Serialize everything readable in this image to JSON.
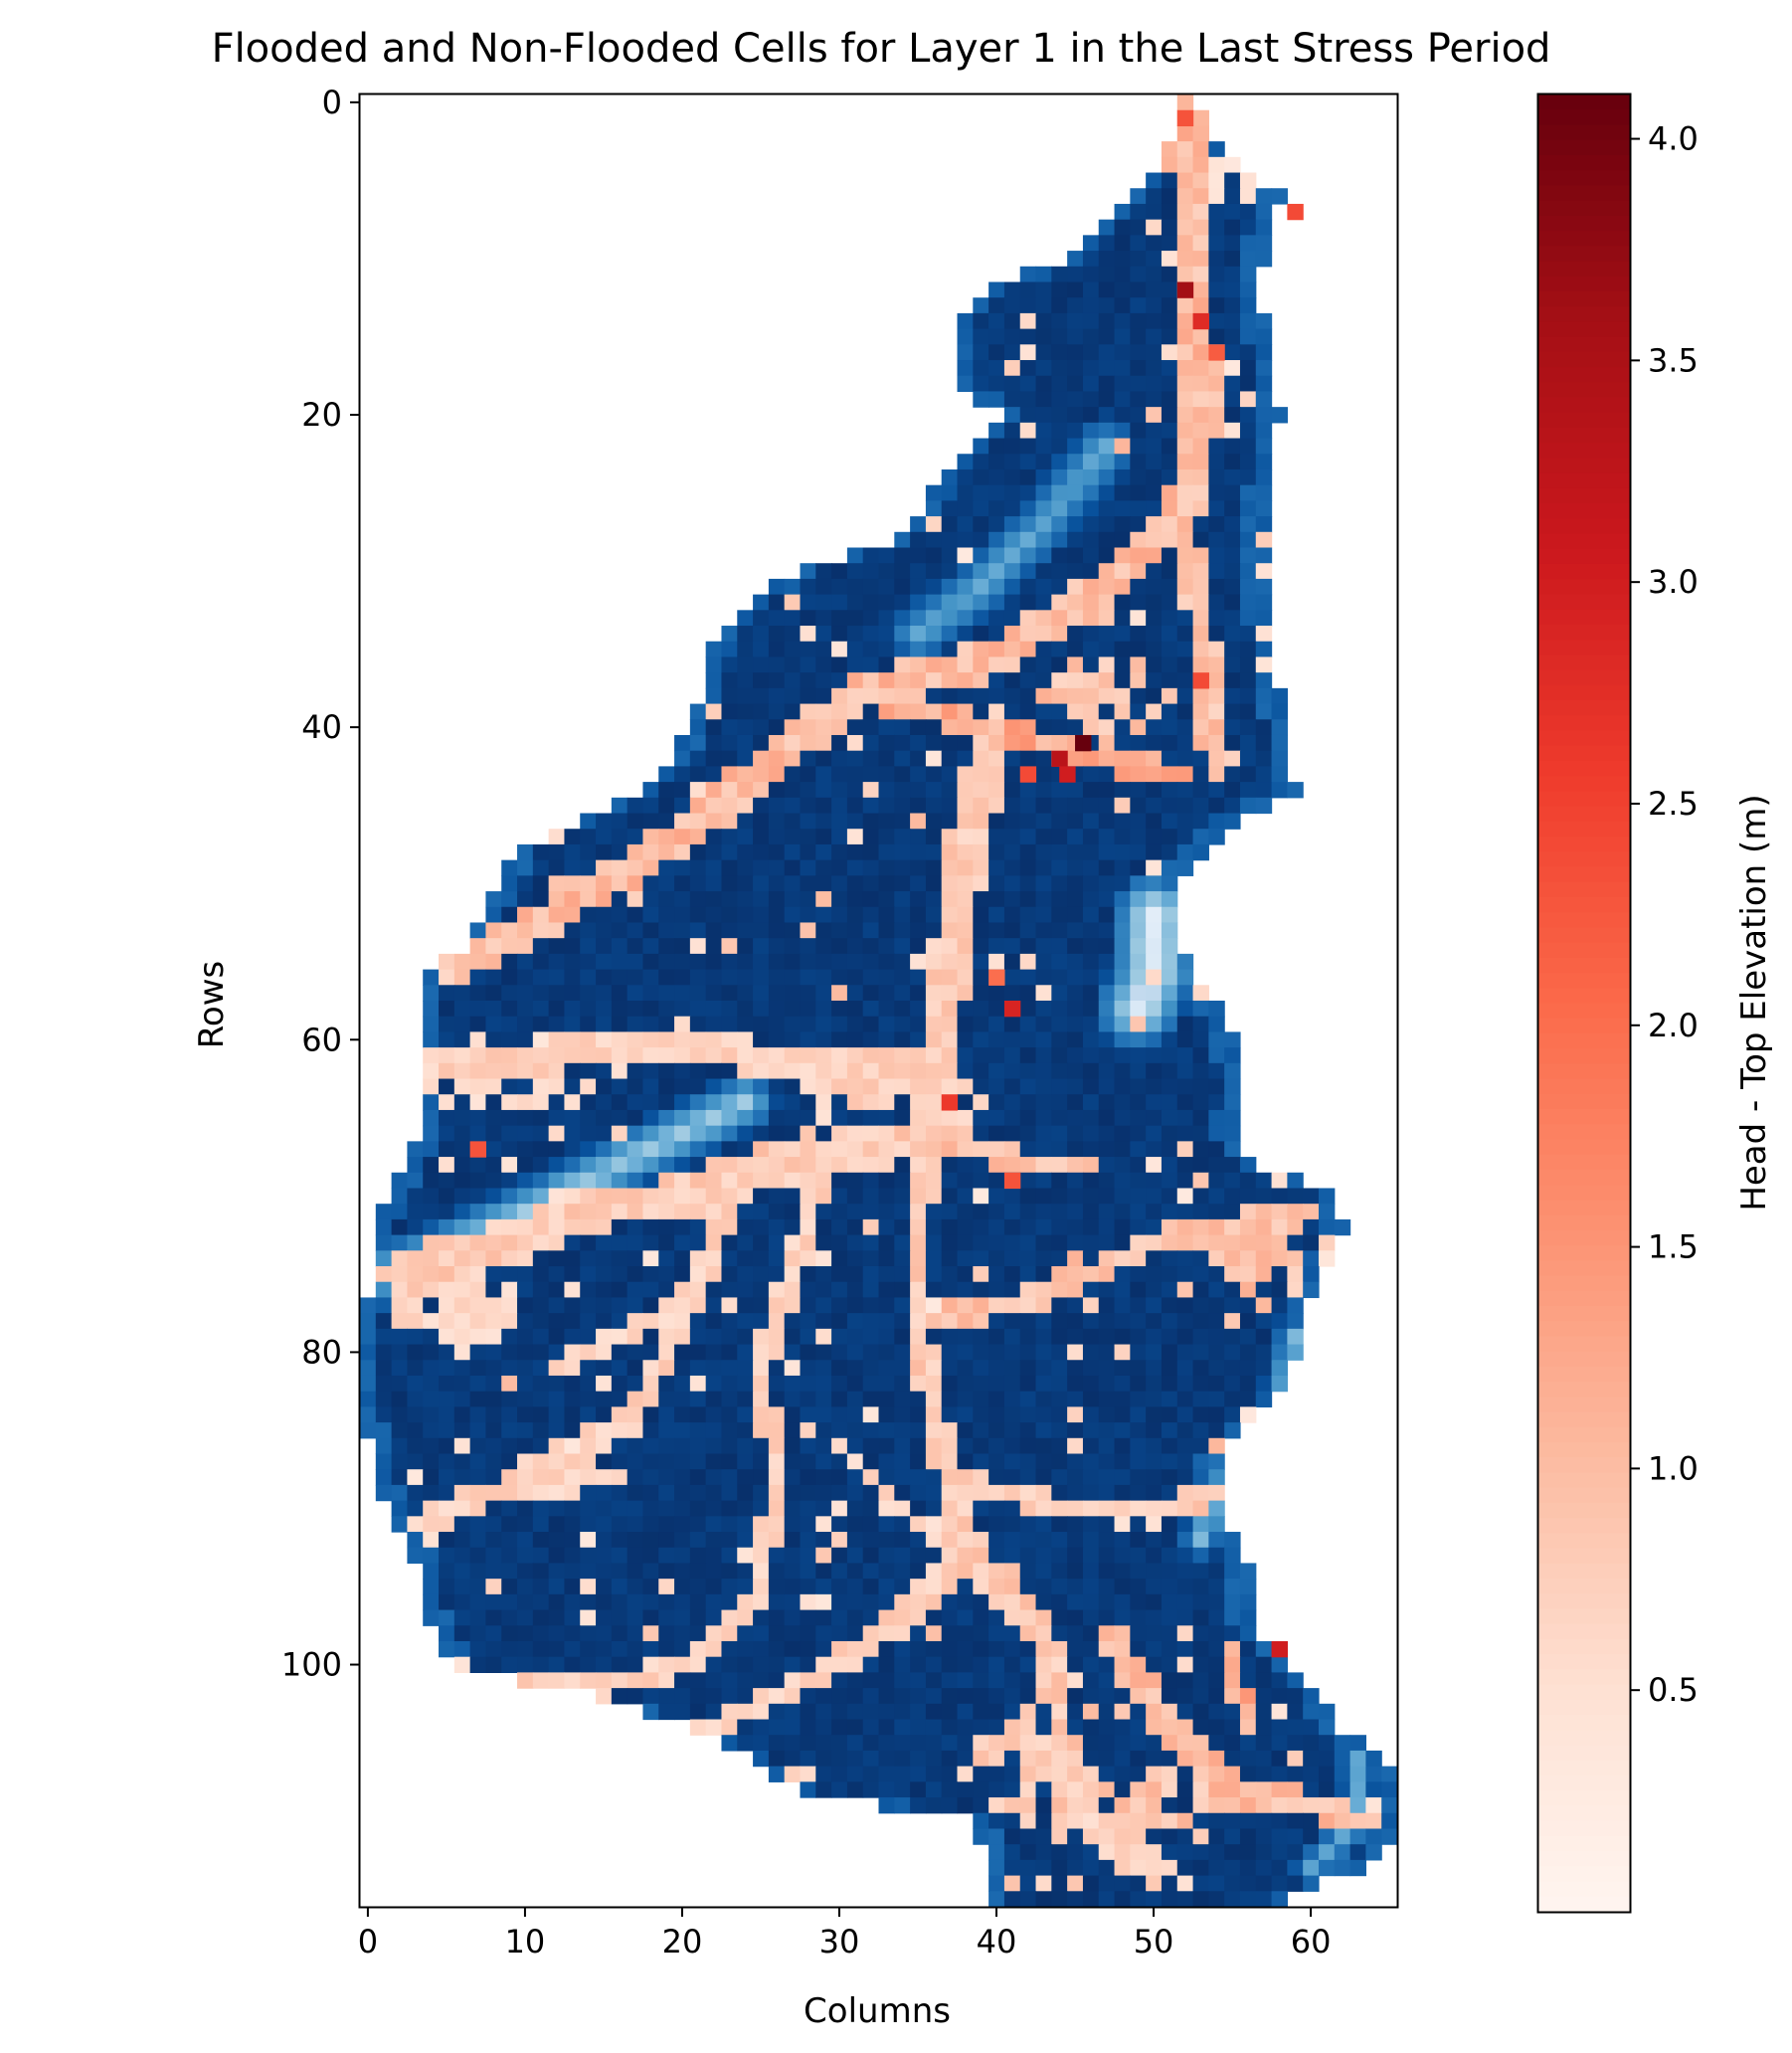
{
  "chart_data": {
    "type": "heatmap",
    "title": "Flooded and Non-Flooded Cells for Layer 1 in the Last Stress Period",
    "xlabel": "Columns",
    "ylabel": "Rows",
    "xlim": [
      -0.5,
      65.5
    ],
    "ylim": [
      115.5,
      -0.5
    ],
    "xticks": [
      0,
      10,
      20,
      30,
      40,
      50,
      60
    ],
    "yticks": [
      0,
      20,
      40,
      60,
      80,
      100
    ],
    "colorbar": {
      "label": "Head - Top Elevation (m)",
      "colormap": "Reds",
      "range": [
        0.0,
        4.1
      ],
      "ticks": [
        0.5,
        1.0,
        1.5,
        2.0,
        2.5,
        3.0,
        3.5,
        4.0
      ]
    },
    "flooded_colormap": "Reds",
    "non_flooded_colormap": "Blues",
    "colors": {
      "non_flooded_deep": "#08306b",
      "non_flooded_mid": "#2171b5",
      "non_flooded_light": "#9ecae1",
      "flooded_light": "#fcbba1",
      "flooded_mid": "#fb6a4a",
      "flooded_high": "#a50f15",
      "flooded_max": "#67000d"
    },
    "domain_rows": [
      [
        0,
        51.5,
        52.5
      ],
      [
        2,
        51.5,
        53.5
      ],
      [
        4,
        50.5,
        55
      ],
      [
        6,
        48.5,
        58
      ],
      [
        8,
        46.5,
        57.5
      ],
      [
        10,
        44.5,
        57
      ],
      [
        12,
        39.5,
        56.5
      ],
      [
        14,
        37.5,
        57
      ],
      [
        16,
        37.5,
        57.5
      ],
      [
        18,
        37.5,
        57.5
      ],
      [
        20,
        40.5,
        58
      ],
      [
        22,
        38.5,
        57.5
      ],
      [
        24,
        36.5,
        57.5
      ],
      [
        26,
        35.5,
        57
      ],
      [
        28,
        33.5,
        57
      ],
      [
        30,
        27.5,
        57
      ],
      [
        32,
        24.5,
        57
      ],
      [
        34,
        22.5,
        57.5
      ],
      [
        36,
        21.5,
        57.5
      ],
      [
        38,
        21.5,
        58
      ],
      [
        40,
        20.5,
        58.5
      ],
      [
        42,
        19.5,
        58.5
      ],
      [
        44,
        17.5,
        59
      ],
      [
        46,
        13.5,
        55
      ],
      [
        48,
        9.5,
        53
      ],
      [
        50,
        8.5,
        51.5
      ],
      [
        52,
        7.5,
        51
      ],
      [
        54,
        6.5,
        51.5
      ],
      [
        56,
        3.5,
        52.5
      ],
      [
        58,
        3.5,
        54
      ],
      [
        60,
        3.5,
        55
      ],
      [
        62,
        3.5,
        55.5
      ],
      [
        64,
        3.5,
        55.5
      ],
      [
        66,
        3.5,
        55
      ],
      [
        68,
        2.5,
        56.5
      ],
      [
        70,
        1.5,
        61.5
      ],
      [
        72,
        0.5,
        62
      ],
      [
        74,
        0.5,
        61
      ],
      [
        76,
        0.5,
        60
      ],
      [
        78,
        -0.5,
        59.5
      ],
      [
        80,
        -0.5,
        59
      ],
      [
        82,
        -0.5,
        58.5
      ],
      [
        84,
        -0.5,
        56.5
      ],
      [
        86,
        0.5,
        54.5
      ],
      [
        88,
        0.5,
        54
      ],
      [
        90,
        1.5,
        54
      ],
      [
        92,
        2.5,
        55.5
      ],
      [
        94,
        3.5,
        56
      ],
      [
        96,
        3.5,
        56
      ],
      [
        98,
        4.5,
        56.5
      ],
      [
        100,
        5.5,
        58.5
      ],
      [
        102,
        14.5,
        60.5
      ],
      [
        104,
        20.5,
        61.5
      ],
      [
        106,
        24.5,
        64.5
      ],
      [
        108,
        27.5,
        65.5
      ],
      [
        110,
        38.5,
        65.5
      ],
      [
        112,
        39.5,
        64.5
      ],
      [
        113,
        39.5,
        63
      ],
      [
        114,
        39.5,
        60.5
      ],
      [
        115,
        39.5,
        58.5
      ]
    ],
    "channels": [
      {
        "points": [
          [
            52,
            1
          ],
          [
            52.5,
            10
          ],
          [
            53,
            20
          ],
          [
            52,
            26
          ],
          [
            47,
            31
          ],
          [
            40,
            35.5
          ],
          [
            31,
            38
          ],
          [
            26,
            42
          ],
          [
            20,
            47
          ],
          [
            15,
            50
          ],
          [
            10,
            53
          ],
          [
            6,
            55
          ]
        ],
        "width": 2.4,
        "value": 1.0
      },
      {
        "points": [
          [
            52,
            28
          ],
          [
            53,
            33
          ],
          [
            53.5,
            38
          ],
          [
            54,
            43
          ]
        ],
        "width": 1.6,
        "value": 0.9
      },
      {
        "points": [
          [
            31,
            38
          ],
          [
            40,
            40
          ],
          [
            46,
            42
          ],
          [
            52,
            43
          ]
        ],
        "width": 1.4,
        "value": 1.2
      },
      {
        "points": [
          [
            40,
            40
          ],
          [
            38,
            48
          ],
          [
            37,
            56
          ],
          [
            36,
            62
          ],
          [
            36,
            66
          ],
          [
            32,
            67
          ],
          [
            26,
            68
          ],
          [
            20,
            70
          ],
          [
            14,
            71
          ],
          [
            9,
            73
          ],
          [
            5,
            74
          ],
          [
            2,
            75
          ]
        ],
        "width": 2.6,
        "value": 0.8
      },
      {
        "points": [
          [
            36,
            62
          ],
          [
            28,
            62
          ],
          [
            20,
            60
          ],
          [
            12,
            61
          ],
          [
            4,
            62
          ]
        ],
        "width": 2.2,
        "value": 0.7
      },
      {
        "points": [
          [
            36,
            66
          ],
          [
            42,
            68
          ],
          [
            46,
            68
          ]
        ],
        "width": 1.4,
        "value": 0.9
      },
      {
        "points": [
          [
            36,
            66
          ],
          [
            35,
            72
          ],
          [
            35,
            78
          ],
          [
            36,
            84
          ],
          [
            37,
            88
          ],
          [
            38,
            93
          ],
          [
            43,
            98
          ],
          [
            44,
            103
          ],
          [
            44,
            107
          ],
          [
            44,
            111
          ]
        ],
        "width": 1.6,
        "value": 0.8
      },
      {
        "points": [
          [
            23,
            68
          ],
          [
            22,
            73
          ],
          [
            20,
            78
          ],
          [
            17,
            84
          ],
          [
            12,
            88
          ],
          [
            8,
            89
          ],
          [
            3,
            91
          ]
        ],
        "width": 1.6,
        "value": 0.7
      },
      {
        "points": [
          [
            29,
            68
          ],
          [
            27,
            75
          ],
          [
            25,
            81
          ],
          [
            26,
            88
          ],
          [
            25,
            95
          ],
          [
            21,
            100
          ],
          [
            16,
            101
          ],
          [
            9,
            101
          ]
        ],
        "width": 1.4,
        "value": 0.7
      },
      {
        "points": [
          [
            35,
            78
          ],
          [
            41,
            77
          ],
          [
            46,
            75
          ],
          [
            50,
            73
          ],
          [
            55,
            72
          ],
          [
            60,
            71
          ]
        ],
        "width": 1.6,
        "value": 0.9
      },
      {
        "points": [
          [
            37,
            88
          ],
          [
            44,
            90
          ],
          [
            50,
            90
          ],
          [
            55,
            89
          ]
        ],
        "width": 1.4,
        "value": 0.8
      },
      {
        "points": [
          [
            38,
            93
          ],
          [
            33,
            98
          ],
          [
            28,
            101
          ],
          [
            22,
            104
          ],
          [
            18,
            107
          ]
        ],
        "width": 1.6,
        "value": 0.7
      },
      {
        "points": [
          [
            30,
            86
          ],
          [
            34,
            90
          ],
          [
            38,
            93
          ]
        ],
        "width": 1.1,
        "value": 0.6
      },
      {
        "points": [
          [
            47,
            98
          ],
          [
            51,
            104
          ],
          [
            55,
            108
          ],
          [
            60,
            109
          ],
          [
            63,
            110
          ]
        ],
        "width": 1.8,
        "value": 1.0
      },
      {
        "points": [
          [
            55,
            100
          ],
          [
            56,
            104
          ]
        ],
        "width": 1.2,
        "value": 1.2
      },
      {
        "points": [
          [
            12,
            81
          ],
          [
            16,
            79
          ],
          [
            20,
            77
          ]
        ],
        "width": 1.2,
        "value": 0.6
      },
      {
        "points": [
          [
            44,
            106
          ],
          [
            46,
            110
          ],
          [
            50,
            113
          ]
        ],
        "width": 2.4,
        "value": 0.7
      }
    ],
    "flooded_patches": [
      {
        "cx": 10,
        "cy": 62,
        "rx": 5,
        "ry": 2.5,
        "value": 0.5
      },
      {
        "cx": 6,
        "cy": 77,
        "rx": 4,
        "ry": 3,
        "value": 0.6
      },
      {
        "cx": 12,
        "cy": 88,
        "rx": 4,
        "ry": 2,
        "value": 0.6
      },
      {
        "cx": 42,
        "cy": 107,
        "rx": 4,
        "ry": 4,
        "value": 0.8
      },
      {
        "cx": 50,
        "cy": 109,
        "rx": 5,
        "ry": 3,
        "value": 0.9
      },
      {
        "cx": 57,
        "cy": 74,
        "rx": 3,
        "ry": 3,
        "value": 0.9
      },
      {
        "cx": 35,
        "cy": 64,
        "rx": 4,
        "ry": 3,
        "value": 0.7
      },
      {
        "cx": 47,
        "cy": 38,
        "rx": 4,
        "ry": 3,
        "value": 0.9
      },
      {
        "cx": 54,
        "cy": 5,
        "rx": 3,
        "ry": 1.5,
        "value": 0.4
      }
    ],
    "light_zones": [
      {
        "points": [
          [
            1,
            75
          ],
          [
            6,
            73
          ],
          [
            12,
            70
          ],
          [
            18,
            67
          ],
          [
            24,
            64
          ]
        ],
        "width": 2.2,
        "value": 0.6
      },
      {
        "points": [
          [
            47,
            22
          ],
          [
            43,
            27
          ],
          [
            39,
            31
          ],
          [
            35,
            34
          ]
        ],
        "width": 2.2,
        "value": 0.45
      },
      {
        "points": [
          [
            50,
            52
          ],
          [
            50,
            56
          ],
          [
            49,
            58
          ]
        ],
        "width": 3,
        "value": 0.85
      },
      {
        "points": [
          [
            59,
            79
          ],
          [
            58,
            84
          ],
          [
            55,
            87
          ],
          [
            53,
            92
          ]
        ],
        "width": 1.6,
        "value": 0.5
      },
      {
        "points": [
          [
            63,
            106
          ],
          [
            63,
            110
          ],
          [
            60,
            113
          ]
        ],
        "width": 1.4,
        "value": 0.45
      }
    ],
    "hotspots": [
      {
        "row": 41,
        "col": 45.5,
        "value": 4.1
      },
      {
        "row": 42,
        "col": 44,
        "value": 3.3
      },
      {
        "row": 43,
        "col": 44.5,
        "value": 3.0
      },
      {
        "row": 12,
        "col": 52,
        "value": 3.6
      },
      {
        "row": 14,
        "col": 53,
        "value": 2.8
      },
      {
        "row": 16,
        "col": 54,
        "value": 2.2
      },
      {
        "row": 58,
        "col": 41,
        "value": 2.9
      },
      {
        "row": 56,
        "col": 40,
        "value": 2.0
      },
      {
        "row": 37,
        "col": 53,
        "value": 2.4
      },
      {
        "row": 99,
        "col": 58,
        "value": 3.0
      },
      {
        "row": 67,
        "col": 7,
        "value": 2.3
      },
      {
        "row": 69,
        "col": 41,
        "value": 2.3
      },
      {
        "row": 7,
        "col": 59,
        "value": 2.4
      },
      {
        "row": 43,
        "col": 42,
        "value": 2.4
      },
      {
        "row": 1,
        "col": 52,
        "value": 2.3
      },
      {
        "row": 64,
        "col": 37,
        "value": 2.6
      }
    ]
  }
}
